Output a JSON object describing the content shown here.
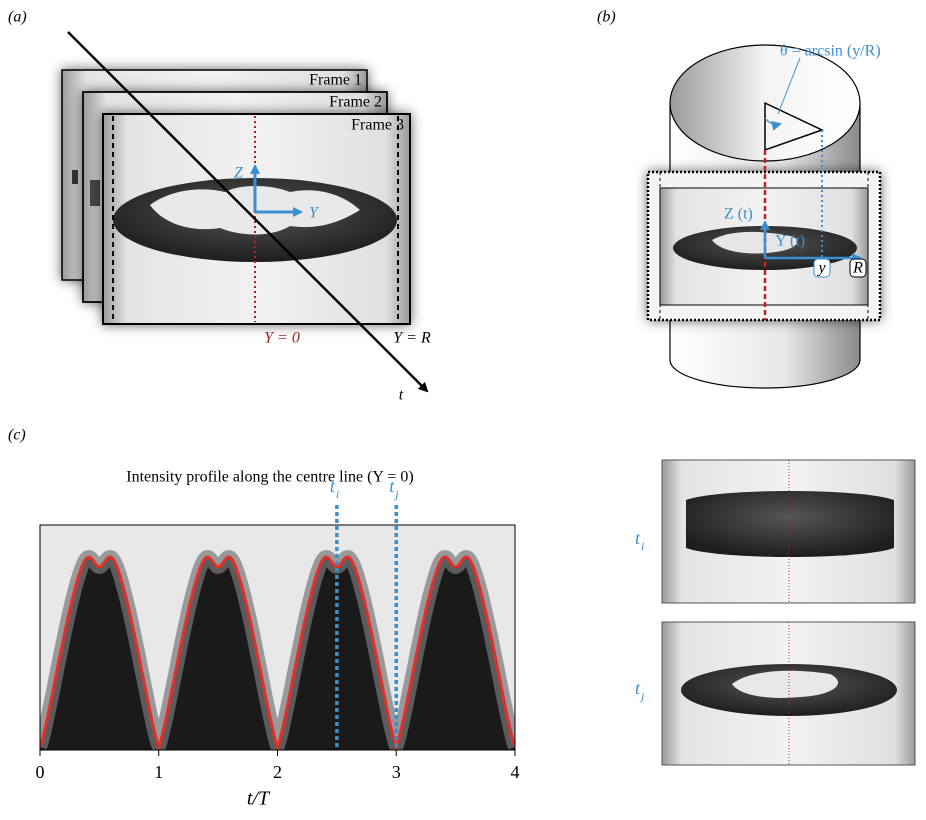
{
  "panel_a": {
    "label": "(a)",
    "frames": [
      "Frame 1",
      "Frame 2",
      "Frame 3"
    ],
    "z_axis": "Z",
    "y_axis": "Y",
    "centre_label": "Y = 0",
    "edge_label": "Y = R",
    "time_label": "t"
  },
  "panel_b": {
    "label": "(b)",
    "angle_label": "θ = arcsin (y/R)",
    "z_label": "Z (t)",
    "y_label": "Y (t)",
    "y_small": "y",
    "r_label": "R"
  },
  "panel_c": {
    "label": "(c)",
    "title": "Intensity profile along the centre line (Y = 0)",
    "xlabel": "t/T",
    "xlim": [
      0,
      4
    ],
    "xticks": [
      0,
      1,
      2,
      3,
      4
    ],
    "markers": [
      {
        "x": 2.5,
        "base": "t",
        "sub": "i"
      },
      {
        "x": 3,
        "base": "t",
        "sub": "j"
      }
    ]
  }
}
